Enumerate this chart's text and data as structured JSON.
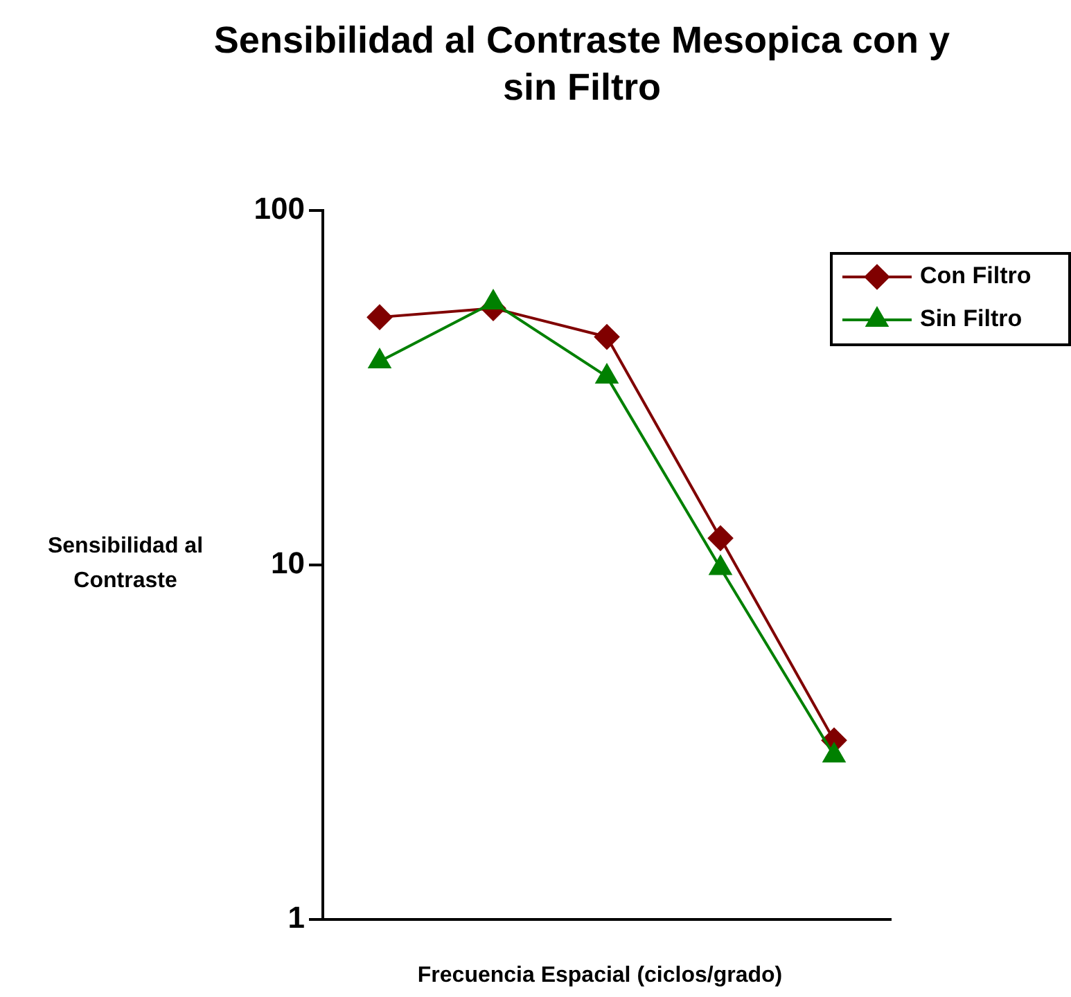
{
  "chart_data": {
    "type": "line",
    "title": "Sensibilidad al Contraste Mesopica con y sin Filtro",
    "xlabel": "Frecuencia Espacial (ciclos/grado)",
    "ylabel": "Sensibilidad al Contraste",
    "categories": [
      null,
      null,
      null,
      null,
      null
    ],
    "log": "y",
    "ylim": [
      1,
      100
    ],
    "yticks": [
      1,
      10,
      100
    ],
    "grid": false,
    "legend": "top right",
    "line_style": "solid",
    "series": [
      {
        "name": "Con Filtro",
        "color": "#800000",
        "marker": "diamond",
        "values": [
          50,
          53,
          44,
          11.9,
          3.2
        ]
      },
      {
        "name": "Sin Filtro",
        "color": "#008000",
        "marker": "triangle",
        "values": [
          37.5,
          55,
          34,
          9.8,
          2.9
        ]
      }
    ]
  }
}
